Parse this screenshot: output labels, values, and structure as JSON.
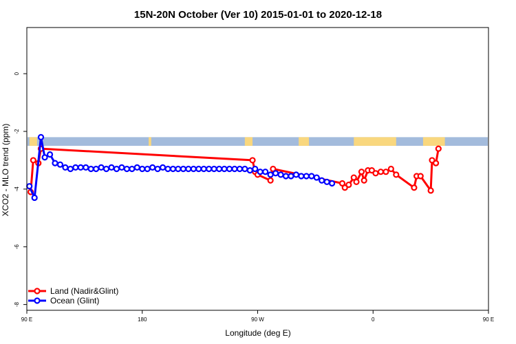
{
  "chart_data": {
    "type": "line",
    "title": "15N-20N October (Ver 10)   2015-01-01 to 2020-12-18",
    "xlabel": "Longitude (deg E)",
    "ylabel": "XCO2 - MLO trend (ppm)",
    "xlim": [
      90,
      450
    ],
    "ylim": [
      -8.2,
      1.6
    ],
    "x_ticks": [
      {
        "value": 90,
        "label": "90 E"
      },
      {
        "value": 180,
        "label": "180"
      },
      {
        "value": 270,
        "label": "90 W"
      },
      {
        "value": 360,
        "label": "0"
      },
      {
        "value": 450,
        "label": "90 E"
      },
      {
        "value": 540,
        "label": "180"
      }
    ],
    "y_ticks": [
      {
        "value": 0,
        "label": "0"
      },
      {
        "value": -2,
        "label": "-2"
      },
      {
        "value": -4,
        "label": "-4"
      },
      {
        "value": -6,
        "label": "-6"
      },
      {
        "value": -8,
        "label": "-8"
      }
    ],
    "grid": false,
    "legend_position": "bottom-left",
    "colors": {
      "land": "#ff0000",
      "ocean": "#0000ff",
      "map_ocean": "#a3bbdc",
      "map_land": "#f9d77e"
    },
    "map_strip_land_ranges": [
      [
        92,
        98
      ],
      [
        185,
        187
      ],
      [
        260,
        266
      ],
      [
        302,
        310
      ],
      [
        345,
        378
      ],
      [
        399,
        416
      ],
      [
        450,
        458
      ],
      [
        465,
        470
      ]
    ],
    "series": [
      {
        "name": "Land (Nadir&Glint)",
        "color": "#ff0000",
        "points": [
          [
            93,
            -4.1
          ],
          [
            95,
            -3.0
          ],
          [
            99,
            -3.1
          ],
          [
            101,
            -2.6
          ],
          [
            266,
            -3.0
          ],
          [
            268,
            -3.4
          ],
          [
            270,
            -3.5
          ],
          [
            280,
            -3.7
          ],
          [
            282,
            -3.3
          ],
          [
            336,
            -3.8
          ],
          [
            338,
            -3.95
          ],
          [
            341,
            -3.85
          ],
          [
            345,
            -3.6
          ],
          [
            347,
            -3.75
          ],
          [
            351,
            -3.4
          ],
          [
            353,
            -3.7
          ],
          [
            356,
            -3.35
          ],
          [
            359,
            -3.35
          ],
          [
            362,
            -3.45
          ],
          [
            366,
            -3.4
          ],
          [
            370,
            -3.4
          ],
          [
            374,
            -3.3
          ],
          [
            378,
            -3.5
          ],
          [
            392,
            -3.95
          ],
          [
            394,
            -3.55
          ],
          [
            397,
            -3.55
          ],
          [
            405,
            -4.05
          ],
          [
            406,
            -3.0
          ],
          [
            409,
            -3.1
          ],
          [
            411,
            -2.6
          ]
        ]
      },
      {
        "name": "Ocean (Glint)",
        "color": "#0000ff",
        "points": [
          [
            92,
            -3.9
          ],
          [
            96,
            -4.3
          ],
          [
            101,
            -2.2
          ],
          [
            104,
            -2.9
          ],
          [
            108,
            -2.8
          ],
          [
            112,
            -3.1
          ],
          [
            116,
            -3.15
          ],
          [
            120,
            -3.25
          ],
          [
            124,
            -3.3
          ],
          [
            128,
            -3.25
          ],
          [
            132,
            -3.25
          ],
          [
            136,
            -3.25
          ],
          [
            140,
            -3.3
          ],
          [
            144,
            -3.3
          ],
          [
            148,
            -3.25
          ],
          [
            152,
            -3.3
          ],
          [
            156,
            -3.25
          ],
          [
            160,
            -3.3
          ],
          [
            164,
            -3.25
          ],
          [
            168,
            -3.3
          ],
          [
            172,
            -3.3
          ],
          [
            176,
            -3.25
          ],
          [
            180,
            -3.3
          ],
          [
            184,
            -3.3
          ],
          [
            188,
            -3.25
          ],
          [
            192,
            -3.3
          ],
          [
            196,
            -3.25
          ],
          [
            200,
            -3.3
          ],
          [
            204,
            -3.3
          ],
          [
            208,
            -3.3
          ],
          [
            212,
            -3.3
          ],
          [
            216,
            -3.3
          ],
          [
            220,
            -3.3
          ],
          [
            224,
            -3.3
          ],
          [
            228,
            -3.3
          ],
          [
            232,
            -3.3
          ],
          [
            236,
            -3.3
          ],
          [
            240,
            -3.3
          ],
          [
            244,
            -3.3
          ],
          [
            248,
            -3.3
          ],
          [
            252,
            -3.3
          ],
          [
            256,
            -3.3
          ],
          [
            260,
            -3.3
          ],
          [
            264,
            -3.35
          ],
          [
            268,
            -3.3
          ],
          [
            272,
            -3.4
          ],
          [
            276,
            -3.4
          ],
          [
            280,
            -3.5
          ],
          [
            284,
            -3.45
          ],
          [
            288,
            -3.5
          ],
          [
            292,
            -3.55
          ],
          [
            296,
            -3.55
          ],
          [
            300,
            -3.5
          ],
          [
            304,
            -3.55
          ],
          [
            308,
            -3.55
          ],
          [
            312,
            -3.55
          ],
          [
            316,
            -3.6
          ],
          [
            320,
            -3.7
          ],
          [
            324,
            -3.75
          ],
          [
            328,
            -3.8
          ]
        ]
      }
    ]
  }
}
